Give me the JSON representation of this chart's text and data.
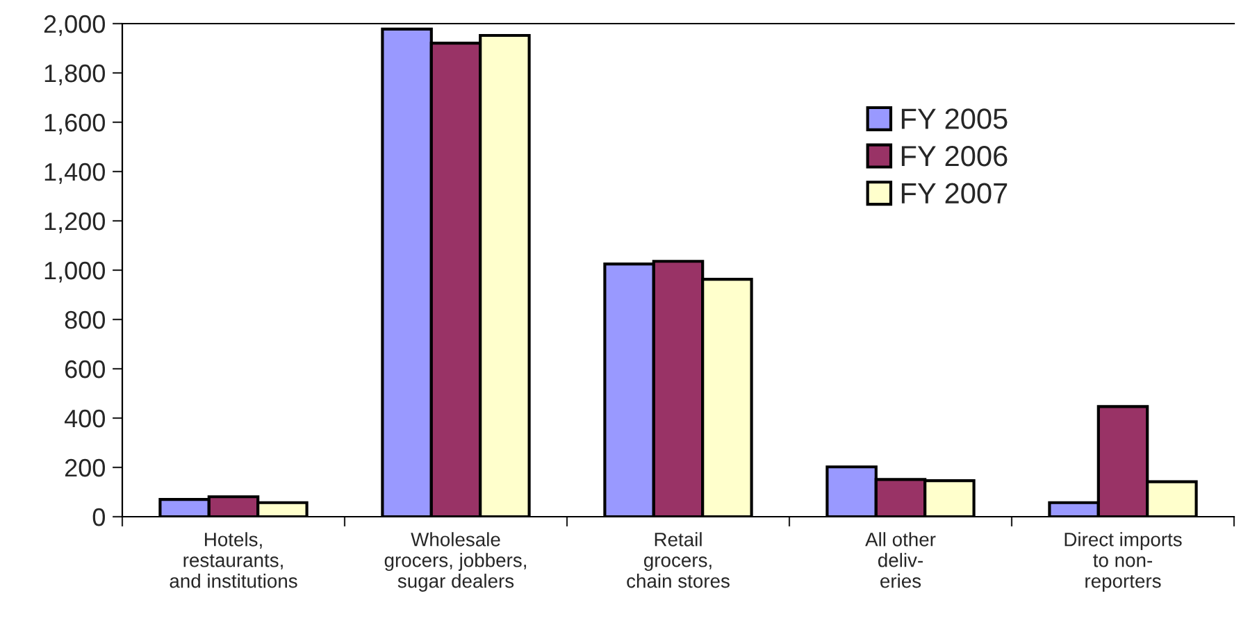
{
  "chart_data": {
    "type": "bar",
    "categories": [
      "Hotels,\nrestaurants,\nand institutions",
      "Wholesale\ngrocers, jobbers,\nsugar dealers",
      "Retail\ngrocers,\nchain stores",
      "All other\ndeliv-\neries",
      "Direct imports\nto non-\nreporters"
    ],
    "series": [
      {
        "name": "FY 2005",
        "color": "#9999ff",
        "values": [
          70,
          1978,
          1025,
          202,
          57
        ]
      },
      {
        "name": "FY 2006",
        "color": "#993366",
        "values": [
          81,
          1921,
          1036,
          151,
          447
        ]
      },
      {
        "name": "FY 2007",
        "color": "#ffffcc",
        "values": [
          57,
          1952,
          963,
          146,
          142
        ]
      }
    ],
    "ylim": [
      0,
      2000
    ],
    "yticks": [
      {
        "value": 0,
        "label": "0"
      },
      {
        "value": 200,
        "label": "200"
      },
      {
        "value": 400,
        "label": "400"
      },
      {
        "value": 600,
        "label": "600"
      },
      {
        "value": 800,
        "label": "800"
      },
      {
        "value": 1000,
        "label": "1,000"
      },
      {
        "value": 1200,
        "label": "1,200"
      },
      {
        "value": 1400,
        "label": "1,400"
      },
      {
        "value": 1600,
        "label": "1,600"
      },
      {
        "value": 1800,
        "label": "1,800"
      },
      {
        "value": 2000,
        "label": "2,000"
      }
    ],
    "grid": false,
    "legend": "top right"
  }
}
